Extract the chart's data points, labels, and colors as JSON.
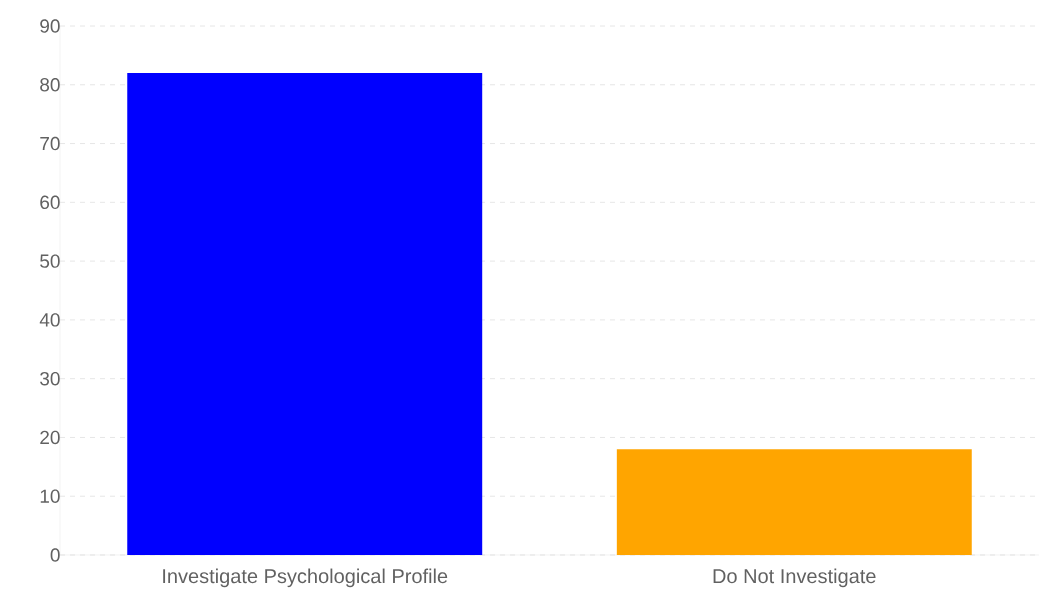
{
  "chart_data": {
    "type": "bar",
    "categories": [
      "Investigate Psychological Profile",
      "Do Not Investigate"
    ],
    "values": [
      82,
      18
    ],
    "colors": [
      "#0000ff",
      "#ffa500"
    ],
    "ylim": [
      0,
      90
    ],
    "yticks": [
      0,
      10,
      20,
      30,
      40,
      50,
      60,
      70,
      80,
      90
    ],
    "grid": "y"
  }
}
